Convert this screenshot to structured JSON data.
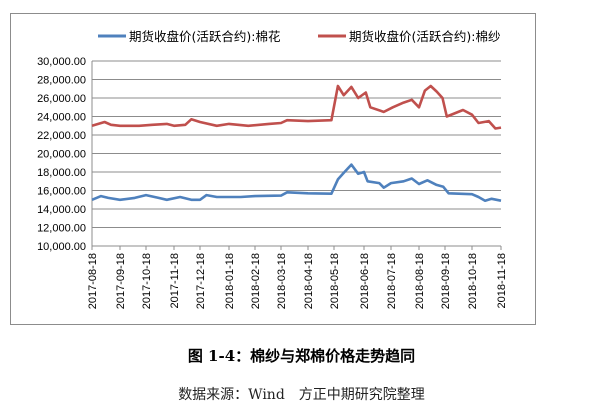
{
  "chart_data": {
    "type": "line",
    "title": "",
    "xlabel": "",
    "ylabel": "",
    "ylim": [
      10000,
      30000
    ],
    "yticks": [
      "10,000.00",
      "12,000.00",
      "14,000.00",
      "16,000.00",
      "18,000.00",
      "20,000.00",
      "22,000.00",
      "24,000.00",
      "26,000.00",
      "28,000.00",
      "30,000.00"
    ],
    "xticks": [
      "2017-08-18",
      "2017-09-18",
      "2017-10-18",
      "2017-11-18",
      "2017-12-18",
      "2018-01-18",
      "2018-02-18",
      "2018-03-18",
      "2018-04-18",
      "2018-05-18",
      "2018-06-18",
      "2018-07-18",
      "2018-08-18",
      "2018-09-18",
      "2018-10-18",
      "2018-11-18"
    ],
    "grid": true,
    "legend_position": "top",
    "series": [
      {
        "name": "期货收盘价(活跃合约):棉花",
        "color": "#4f81bd",
        "points": [
          [
            "2017-08-18",
            15000
          ],
          [
            "2017-08-28",
            15400
          ],
          [
            "2017-09-05",
            15200
          ],
          [
            "2017-09-18",
            15000
          ],
          [
            "2017-10-05",
            15200
          ],
          [
            "2017-10-18",
            15500
          ],
          [
            "2017-11-01",
            15200
          ],
          [
            "2017-11-10",
            15000
          ],
          [
            "2017-11-25",
            15300
          ],
          [
            "2017-12-08",
            15000
          ],
          [
            "2017-12-18",
            15000
          ],
          [
            "2017-12-25",
            15500
          ],
          [
            "2018-01-05",
            15300
          ],
          [
            "2018-02-01",
            15300
          ],
          [
            "2018-02-18",
            15400
          ],
          [
            "2018-03-18",
            15450
          ],
          [
            "2018-03-25",
            15800
          ],
          [
            "2018-04-18",
            15700
          ],
          [
            "2018-05-15",
            15650
          ],
          [
            "2018-05-22",
            17200
          ],
          [
            "2018-05-28",
            17900
          ],
          [
            "2018-06-05",
            18800
          ],
          [
            "2018-06-12",
            17800
          ],
          [
            "2018-06-18",
            18000
          ],
          [
            "2018-06-22",
            17000
          ],
          [
            "2018-07-05",
            16800
          ],
          [
            "2018-07-10",
            16300
          ],
          [
            "2018-07-18",
            16800
          ],
          [
            "2018-08-01",
            17000
          ],
          [
            "2018-08-10",
            17300
          ],
          [
            "2018-08-18",
            16700
          ],
          [
            "2018-08-28",
            17100
          ],
          [
            "2018-09-08",
            16600
          ],
          [
            "2018-09-16",
            16400
          ],
          [
            "2018-09-22",
            15700
          ],
          [
            "2018-10-18",
            15600
          ],
          [
            "2018-10-25",
            15300
          ],
          [
            "2018-11-01",
            14900
          ],
          [
            "2018-11-08",
            15100
          ],
          [
            "2018-11-18",
            14900
          ]
        ]
      },
      {
        "name": "期货收盘价(活跃合约):棉纱",
        "color": "#c0504d",
        "points": [
          [
            "2017-08-18",
            23000
          ],
          [
            "2017-09-01",
            23400
          ],
          [
            "2017-09-08",
            23100
          ],
          [
            "2017-09-18",
            23000
          ],
          [
            "2017-10-10",
            23000
          ],
          [
            "2017-10-25",
            23100
          ],
          [
            "2017-11-10",
            23200
          ],
          [
            "2017-11-18",
            23000
          ],
          [
            "2017-12-01",
            23100
          ],
          [
            "2017-12-08",
            23700
          ],
          [
            "2017-12-18",
            23400
          ],
          [
            "2018-01-05",
            23000
          ],
          [
            "2018-01-18",
            23200
          ],
          [
            "2018-02-10",
            23000
          ],
          [
            "2018-03-05",
            23200
          ],
          [
            "2018-03-18",
            23300
          ],
          [
            "2018-03-25",
            23600
          ],
          [
            "2018-04-18",
            23500
          ],
          [
            "2018-05-15",
            23600
          ],
          [
            "2018-05-22",
            27300
          ],
          [
            "2018-05-28",
            26300
          ],
          [
            "2018-06-05",
            27200
          ],
          [
            "2018-06-12",
            26000
          ],
          [
            "2018-06-20",
            26600
          ],
          [
            "2018-06-25",
            25000
          ],
          [
            "2018-07-10",
            24500
          ],
          [
            "2018-07-20",
            25000
          ],
          [
            "2018-08-01",
            25500
          ],
          [
            "2018-08-10",
            25800
          ],
          [
            "2018-08-18",
            25000
          ],
          [
            "2018-08-25",
            26800
          ],
          [
            "2018-09-01",
            27300
          ],
          [
            "2018-09-08",
            26700
          ],
          [
            "2018-09-15",
            26000
          ],
          [
            "2018-09-20",
            24000
          ],
          [
            "2018-10-08",
            24700
          ],
          [
            "2018-10-18",
            24200
          ],
          [
            "2018-10-25",
            23300
          ],
          [
            "2018-11-05",
            23500
          ],
          [
            "2018-11-12",
            22700
          ],
          [
            "2018-11-18",
            22800
          ]
        ]
      }
    ]
  },
  "caption": {
    "figure_title": "图 1-4：棉纱与郑棉价格走势趋同",
    "source": "数据来源：Wind　方正中期研究院整理"
  }
}
